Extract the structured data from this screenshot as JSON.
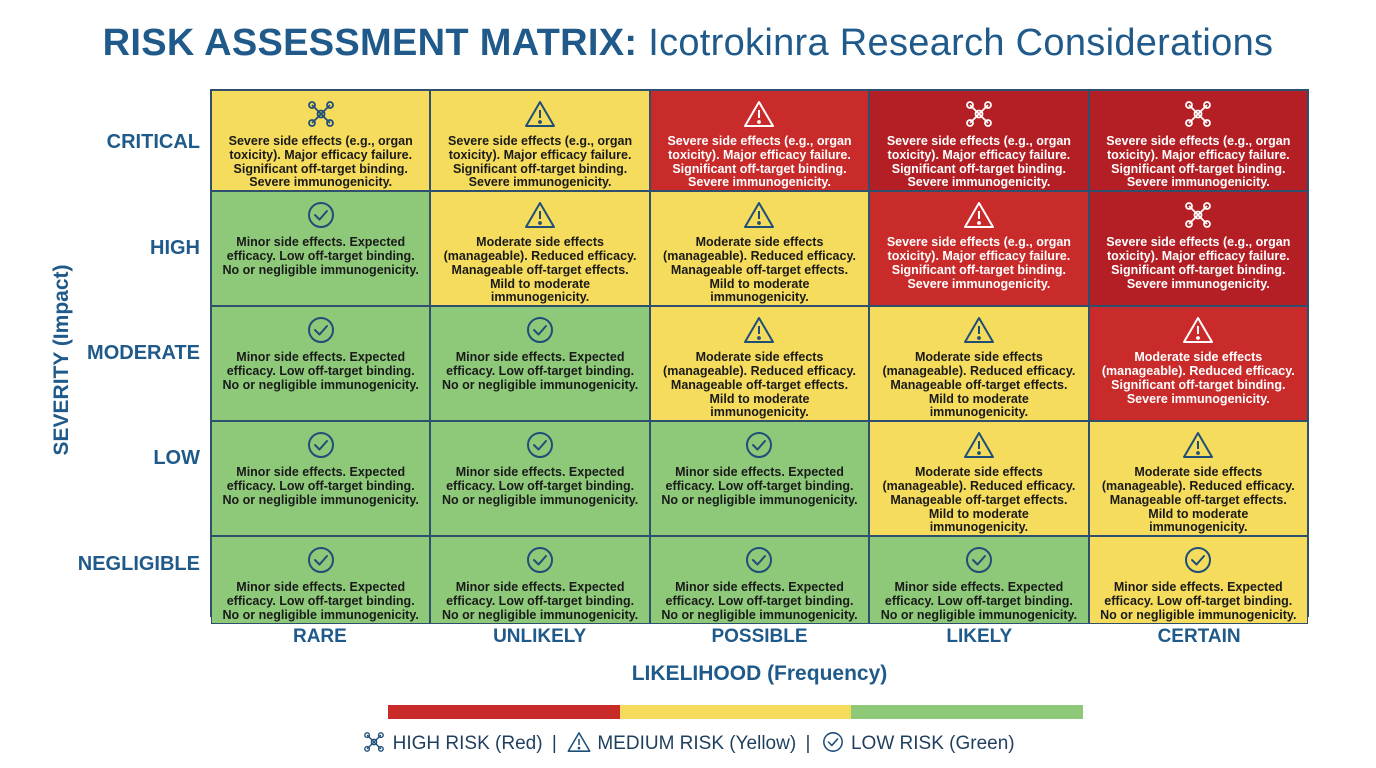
{
  "title": {
    "bold": "RISK ASSESSMENT MATRIX:",
    "light": "Icotrokinra Research Considerations"
  },
  "y_axis_title": "SEVERITY (Impact)",
  "x_axis_title": "LIKELIHOOD (Frequency)",
  "rows": [
    "CRITICAL",
    "HIGH",
    "MODERATE",
    "LOW",
    "NEGLIGIBLE"
  ],
  "columns": [
    "RARE",
    "UNLIKELY",
    "POSSIBLE",
    "LIKELY",
    "CERTAIN"
  ],
  "texts": {
    "severe": "Severe side effects (e.g., organ toxicity). Major efficacy failure. Significant off-target binding. Severe immunogenicity.",
    "moderate": "Moderate side effects (manageable). Reduced efficacy. Manageable off-target effects. Mild to moderate immunogenicity.",
    "moderate_severe": "Moderate side effects (manageable). Reduced efficacy. Significant off-target binding. Severe immunogenicity.",
    "minor": "Minor side effects. Expected efficacy. Low off-target binding. No or negligible immunogenicity."
  },
  "colors": {
    "red": "#c92a2a",
    "dark_red": "#b31f24",
    "yellow": "#f5dc5c",
    "green": "#8ec97a"
  },
  "matrix": [
    [
      {
        "color": "yellow",
        "icon": "molecule-icon",
        "text": "severe"
      },
      {
        "color": "yellow",
        "icon": "warning-icon",
        "text": "severe"
      },
      {
        "color": "red",
        "icon": "warning-icon",
        "text": "severe"
      },
      {
        "color": "dark_red",
        "icon": "molecule-icon",
        "text": "severe"
      },
      {
        "color": "dark_red",
        "icon": "molecule-icon",
        "text": "severe"
      }
    ],
    [
      {
        "color": "green",
        "icon": "check-circle-icon",
        "text": "minor"
      },
      {
        "color": "yellow",
        "icon": "warning-icon",
        "text": "moderate"
      },
      {
        "color": "yellow",
        "icon": "warning-icon",
        "text": "moderate"
      },
      {
        "color": "red",
        "icon": "warning-icon",
        "text": "severe"
      },
      {
        "color": "dark_red",
        "icon": "molecule-icon",
        "text": "severe"
      }
    ],
    [
      {
        "color": "green",
        "icon": "check-circle-icon",
        "text": "minor"
      },
      {
        "color": "green",
        "icon": "check-circle-icon",
        "text": "minor"
      },
      {
        "color": "yellow",
        "icon": "warning-icon",
        "text": "moderate"
      },
      {
        "color": "yellow",
        "icon": "warning-icon",
        "text": "moderate"
      },
      {
        "color": "red",
        "icon": "warning-icon",
        "text": "moderate_severe"
      }
    ],
    [
      {
        "color": "green",
        "icon": "check-circle-icon",
        "text": "minor"
      },
      {
        "color": "green",
        "icon": "check-circle-icon",
        "text": "minor"
      },
      {
        "color": "green",
        "icon": "check-circle-icon",
        "text": "minor"
      },
      {
        "color": "yellow",
        "icon": "warning-icon",
        "text": "moderate"
      },
      {
        "color": "yellow",
        "icon": "warning-icon",
        "text": "moderate"
      }
    ],
    [
      {
        "color": "green",
        "icon": "check-circle-icon",
        "text": "minor"
      },
      {
        "color": "green",
        "icon": "check-circle-icon",
        "text": "minor"
      },
      {
        "color": "green",
        "icon": "check-circle-icon",
        "text": "minor"
      },
      {
        "color": "green",
        "icon": "check-circle-icon",
        "text": "minor"
      },
      {
        "color": "yellow",
        "icon": "check-circle-icon",
        "text": "minor"
      }
    ]
  ],
  "legend": {
    "high": "HIGH RISK (Red)",
    "medium": "MEDIUM RISK (Yellow)",
    "low": "LOW RISK (Green)",
    "separator": "|",
    "bar_colors": [
      "#c92a2a",
      "#f5dc5c",
      "#8ec97a"
    ]
  }
}
